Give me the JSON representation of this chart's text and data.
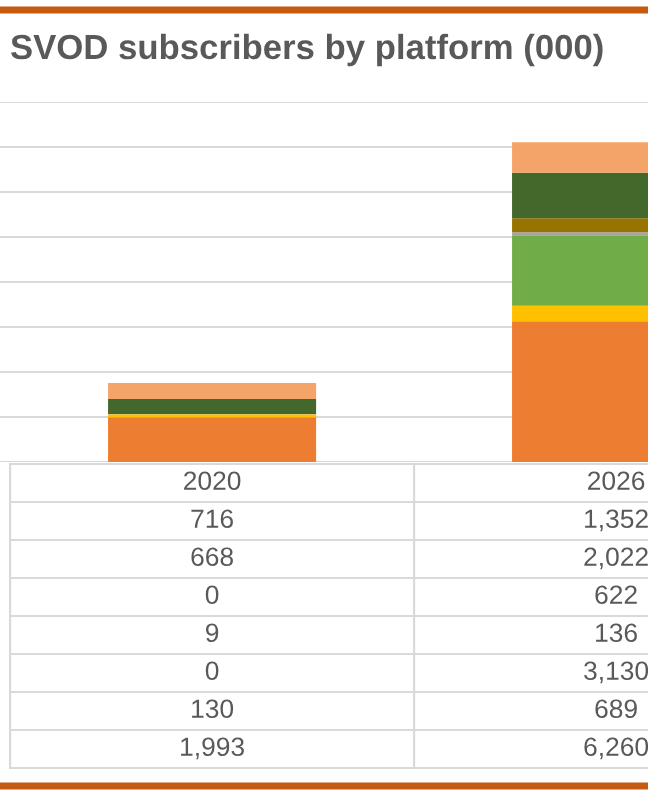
{
  "chart_data": {
    "type": "bar",
    "title": "SVOD subscribers by platform (000)",
    "stacked": true,
    "categories": [
      "2020",
      "2026"
    ],
    "series": [
      {
        "color": "#ed7d31",
        "values": [
          1993,
          6260
        ],
        "value_labels": [
          "1,993",
          "6,260"
        ]
      },
      {
        "color": "#ffc000",
        "values": [
          130,
          689
        ],
        "value_labels": [
          "130",
          "689"
        ]
      },
      {
        "color": "#70ad47",
        "values": [
          0,
          3130
        ],
        "value_labels": [
          "0",
          "3,130"
        ]
      },
      {
        "color": "#a5a5a5",
        "values": [
          9,
          136
        ],
        "value_labels": [
          "9",
          "136"
        ]
      },
      {
        "color": "#997300",
        "values": [
          0,
          622
        ],
        "value_labels": [
          "0",
          "622"
        ]
      },
      {
        "color": "#43682b",
        "values": [
          668,
          2022
        ],
        "value_labels": [
          "668",
          "2,022"
        ]
      },
      {
        "color": "#f4a469",
        "values": [
          716,
          1352
        ],
        "value_labels": [
          "716",
          "1,352"
        ]
      }
    ],
    "ylim": [
      0,
      16000
    ],
    "yticks": [
      {
        "value": 0,
        "label": null
      },
      {
        "value": 2000,
        "label": null
      },
      {
        "value": 4000,
        "label": null
      },
      {
        "value": 6000,
        "label": null
      },
      {
        "value": 8000,
        "label": null
      },
      {
        "value": 10000,
        "label": null
      },
      {
        "value": 12000,
        "label": null
      },
      {
        "value": 14000,
        "label": null
      },
      {
        "value": 16000,
        "label": null
      }
    ],
    "grid": "y"
  }
}
